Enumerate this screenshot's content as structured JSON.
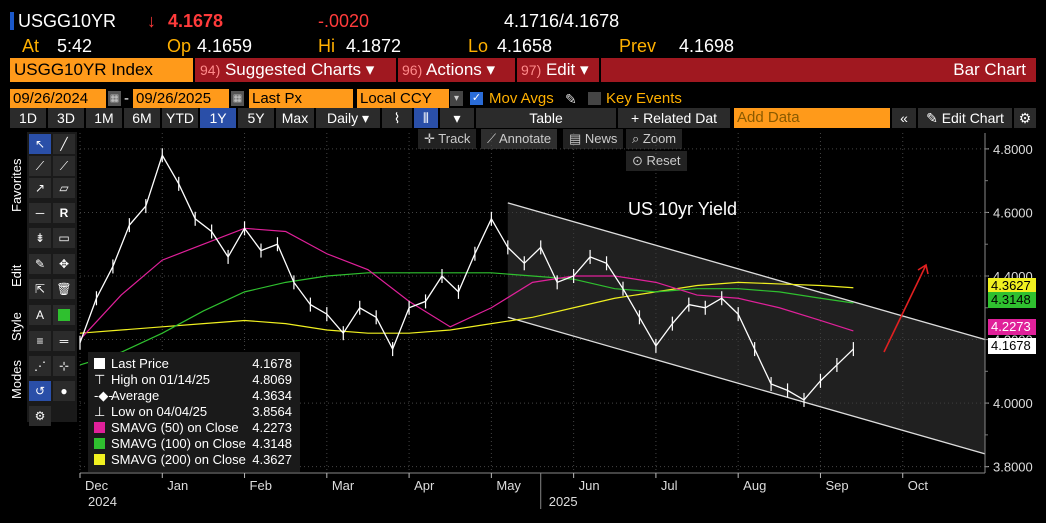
{
  "header": {
    "ticker": "USGG10YR",
    "arrow": "↓",
    "last": "4.1678",
    "change": "-.0020",
    "bid_ask": "4.1716/4.1678",
    "at_label": "At",
    "at_time": "5:42",
    "op_label": "Op",
    "op": "4.1659",
    "hi_label": "Hi",
    "hi": "4.1872",
    "lo_label": "Lo",
    "lo": "4.1658",
    "prev_label": "Prev",
    "prev": "4.1698"
  },
  "menu": {
    "security": "USGG10YR Index",
    "suggested_num": "94)",
    "suggested": "Suggested Charts",
    "actions_num": "96)",
    "actions": "Actions",
    "edit_num": "97)",
    "edit": "Edit",
    "caret": "▾",
    "title": "Bar Chart"
  },
  "settings": {
    "start_date": "09/26/2024",
    "dash": "-",
    "end_date": "09/26/2025",
    "field": "Last Px",
    "currency": "Local CCY",
    "mov_avgs": "Mov Avgs",
    "key_events": "Key Events"
  },
  "toolbar": {
    "ranges": [
      "1D",
      "3D",
      "1M",
      "6M",
      "YTD",
      "1Y",
      "5Y",
      "Max"
    ],
    "selected_range": "1Y",
    "period": "Daily",
    "table": "Table",
    "related": "+ Related Dat",
    "add_data_placeholder": "Add Data",
    "edit_chart": "Edit Chart"
  },
  "chart_tools": {
    "track": "Track",
    "annotate": "Annotate",
    "news": "News",
    "zoom": "Zoom",
    "reset": "Reset"
  },
  "side_tabs": [
    "Favorites",
    "Edit",
    "Style",
    "Modes"
  ],
  "colors": {
    "amber": "#ffb000",
    "orange_field": "#ff9a1a",
    "menu_red": "#a01820",
    "sma50": "#e0209a",
    "sma100": "#2fc02f",
    "sma200": "#f0f020",
    "price": "#ffffff",
    "trend_arrow": "#e02020"
  },
  "legend": {
    "last_price_label": "Last Price",
    "last_price": "4.1678",
    "high_label": "High on 01/14/25",
    "high": "4.8069",
    "average_label": "Average",
    "average": "4.3634",
    "low_label": "Low on 04/04/25",
    "low": "3.8564",
    "sma50_label": "SMAVG (50)  on Close",
    "sma50": "4.2273",
    "sma100_label": "SMAVG (100)  on Close",
    "sma100": "4.3148",
    "sma200_label": "SMAVG (200)  on Close",
    "sma200": "4.3627"
  },
  "chart_data": {
    "type": "line",
    "title": "",
    "annotation": "US 10yr Yield",
    "xlabel": "",
    "ylabel": "",
    "x_ticks": [
      "Dec",
      "Jan",
      "Feb",
      "Mar",
      "Apr",
      "May",
      "Jun",
      "Jul",
      "Aug",
      "Sep",
      "Oct"
    ],
    "year_labels": [
      "2024",
      "2025"
    ],
    "y_ticks": [
      "4.8000",
      "4.6000",
      "4.4000",
      "4.2000",
      "4.0000",
      "3.8000"
    ],
    "ylim": [
      3.78,
      4.85
    ],
    "xlim": [
      0,
      11
    ],
    "series": [
      {
        "name": "USGG10YR",
        "x": [
          0,
          0.2,
          0.4,
          0.6,
          0.8,
          1.0,
          1.2,
          1.4,
          1.6,
          1.8,
          2.0,
          2.2,
          2.4,
          2.6,
          2.8,
          3.0,
          3.2,
          3.4,
          3.6,
          3.8,
          4.0,
          4.2,
          4.4,
          4.6,
          4.8,
          5.0,
          5.2,
          5.4,
          5.6,
          5.8,
          6.0,
          6.2,
          6.4,
          6.6,
          6.8,
          7.0,
          7.2,
          7.4,
          7.6,
          7.8,
          8.0,
          8.2,
          8.4,
          8.6,
          8.8,
          9.0,
          9.2,
          9.4
        ],
        "values": [
          4.19,
          4.33,
          4.43,
          4.56,
          4.62,
          4.78,
          4.69,
          4.58,
          4.54,
          4.46,
          4.55,
          4.48,
          4.5,
          4.38,
          4.31,
          4.28,
          4.22,
          4.3,
          4.27,
          4.17,
          4.3,
          4.32,
          4.4,
          4.35,
          4.47,
          4.58,
          4.49,
          4.44,
          4.49,
          4.38,
          4.4,
          4.46,
          4.44,
          4.36,
          4.27,
          4.18,
          4.25,
          4.31,
          4.3,
          4.33,
          4.28,
          4.17,
          4.06,
          4.04,
          4.01,
          4.07,
          4.12,
          4.17
        ]
      },
      {
        "name": "SMAVG (50)",
        "x": [
          0,
          0.5,
          1.0,
          1.5,
          2.0,
          2.5,
          3.0,
          3.5,
          4.0,
          4.5,
          5.0,
          5.5,
          6.0,
          6.5,
          7.0,
          7.5,
          8.0,
          8.5,
          9.0,
          9.4
        ],
        "values": [
          4.2,
          4.34,
          4.45,
          4.5,
          4.55,
          4.54,
          4.47,
          4.42,
          4.32,
          4.24,
          4.3,
          4.38,
          4.4,
          4.4,
          4.38,
          4.34,
          4.33,
          4.3,
          4.26,
          4.227
        ]
      },
      {
        "name": "SMAVG (100)",
        "x": [
          0,
          0.5,
          1.0,
          1.5,
          2.0,
          2.5,
          3.0,
          3.5,
          4.0,
          4.5,
          5.0,
          5.5,
          6.0,
          6.5,
          7.0,
          7.5,
          8.0,
          8.5,
          9.0,
          9.4
        ],
        "values": [
          4.12,
          4.16,
          4.22,
          4.29,
          4.35,
          4.38,
          4.4,
          4.41,
          4.41,
          4.41,
          4.41,
          4.4,
          4.39,
          4.36,
          4.35,
          4.36,
          4.36,
          4.35,
          4.33,
          4.315
        ]
      },
      {
        "name": "SMAVG (200)",
        "x": [
          0,
          0.5,
          1.0,
          1.5,
          2.0,
          2.5,
          3.0,
          3.5,
          4.0,
          4.5,
          5.0,
          5.5,
          6.0,
          6.5,
          7.0,
          7.5,
          8.0,
          8.5,
          9.0,
          9.4
        ],
        "values": [
          4.22,
          4.23,
          4.24,
          4.25,
          4.26,
          4.25,
          4.23,
          4.22,
          4.22,
          4.23,
          4.25,
          4.27,
          4.3,
          4.33,
          4.35,
          4.37,
          4.38,
          4.375,
          4.37,
          4.363
        ]
      }
    ],
    "channel": {
      "upper": [
        [
          5.2,
          4.63
        ],
        [
          11,
          4.2
        ]
      ],
      "lower": [
        [
          5.2,
          4.27
        ],
        [
          11,
          3.84
        ]
      ]
    }
  }
}
